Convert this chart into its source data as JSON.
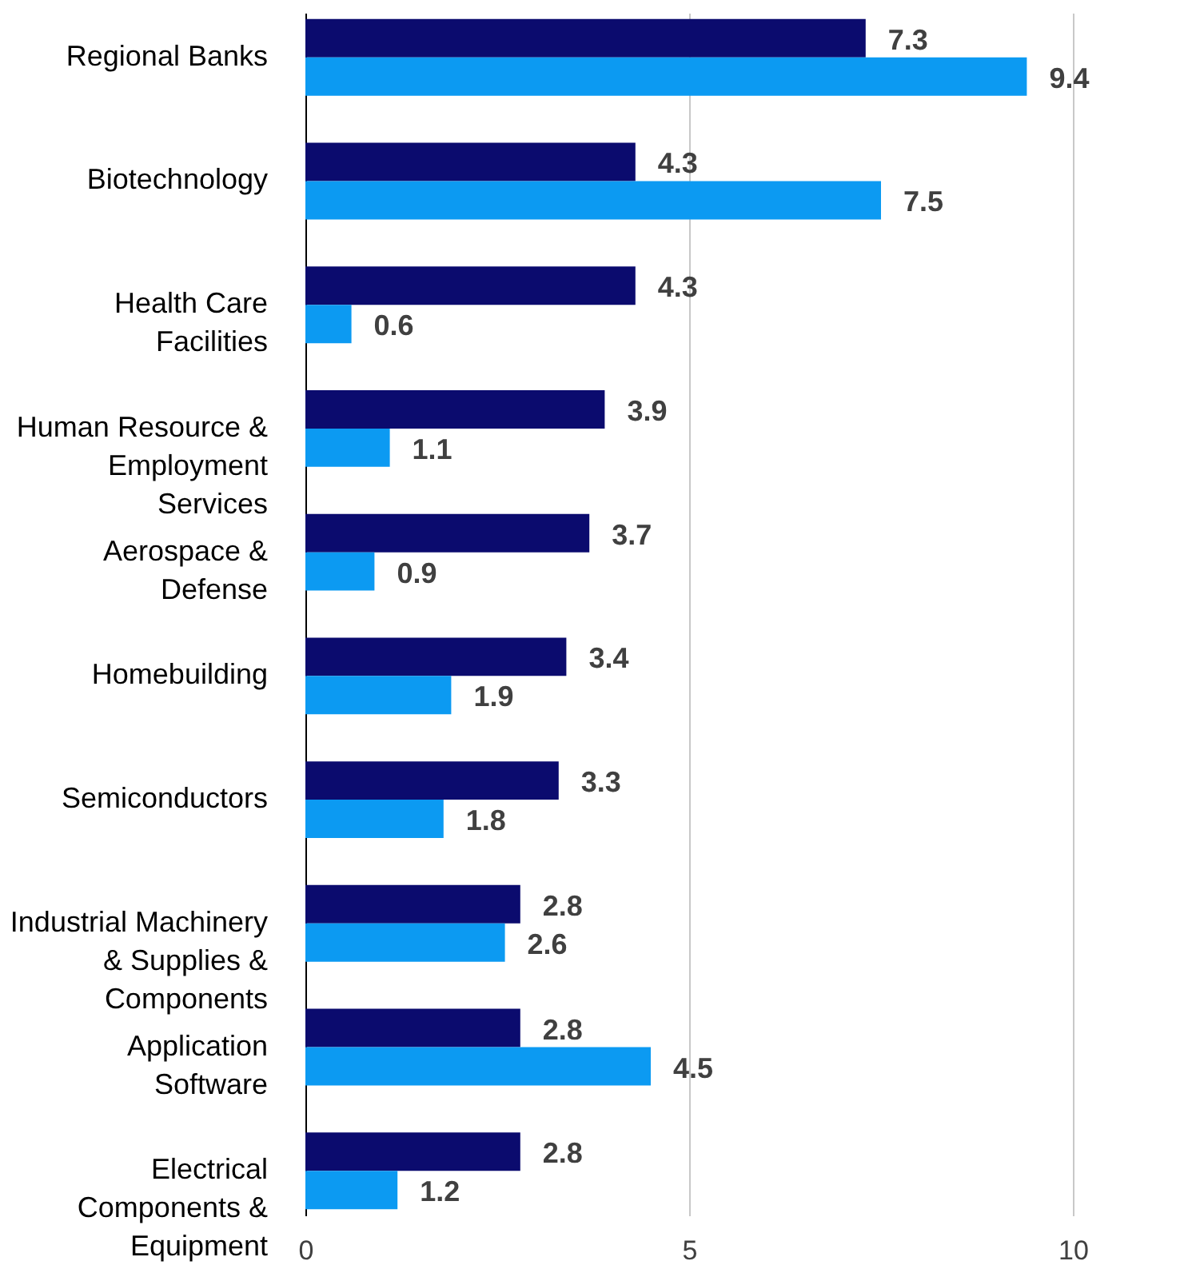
{
  "chart_data": {
    "type": "bar",
    "orientation": "horizontal",
    "categories": [
      "Regional Banks",
      "Biotechnology",
      "Health Care\nFacilities",
      "Human Resource &\nEmployment\nServices",
      "Aerospace &\nDefense",
      "Homebuilding",
      "Semiconductors",
      "Industrial Machinery\n& Supplies &\nComponents",
      "Application\nSoftware",
      "Electrical\nComponents &\nEquipment"
    ],
    "series": [
      {
        "color": "#0b0b6e",
        "values": [
          7.3,
          4.3,
          4.3,
          3.9,
          3.7,
          3.4,
          3.3,
          2.8,
          2.8,
          2.8
        ]
      },
      {
        "color": "#0c9af2",
        "values": [
          9.4,
          7.5,
          0.6,
          1.1,
          0.9,
          1.9,
          1.8,
          2.6,
          4.5,
          1.2
        ]
      }
    ],
    "xlim": [
      0,
      10
    ],
    "xticks": [
      0,
      5,
      10
    ],
    "grid": "x",
    "data_labels": true
  }
}
